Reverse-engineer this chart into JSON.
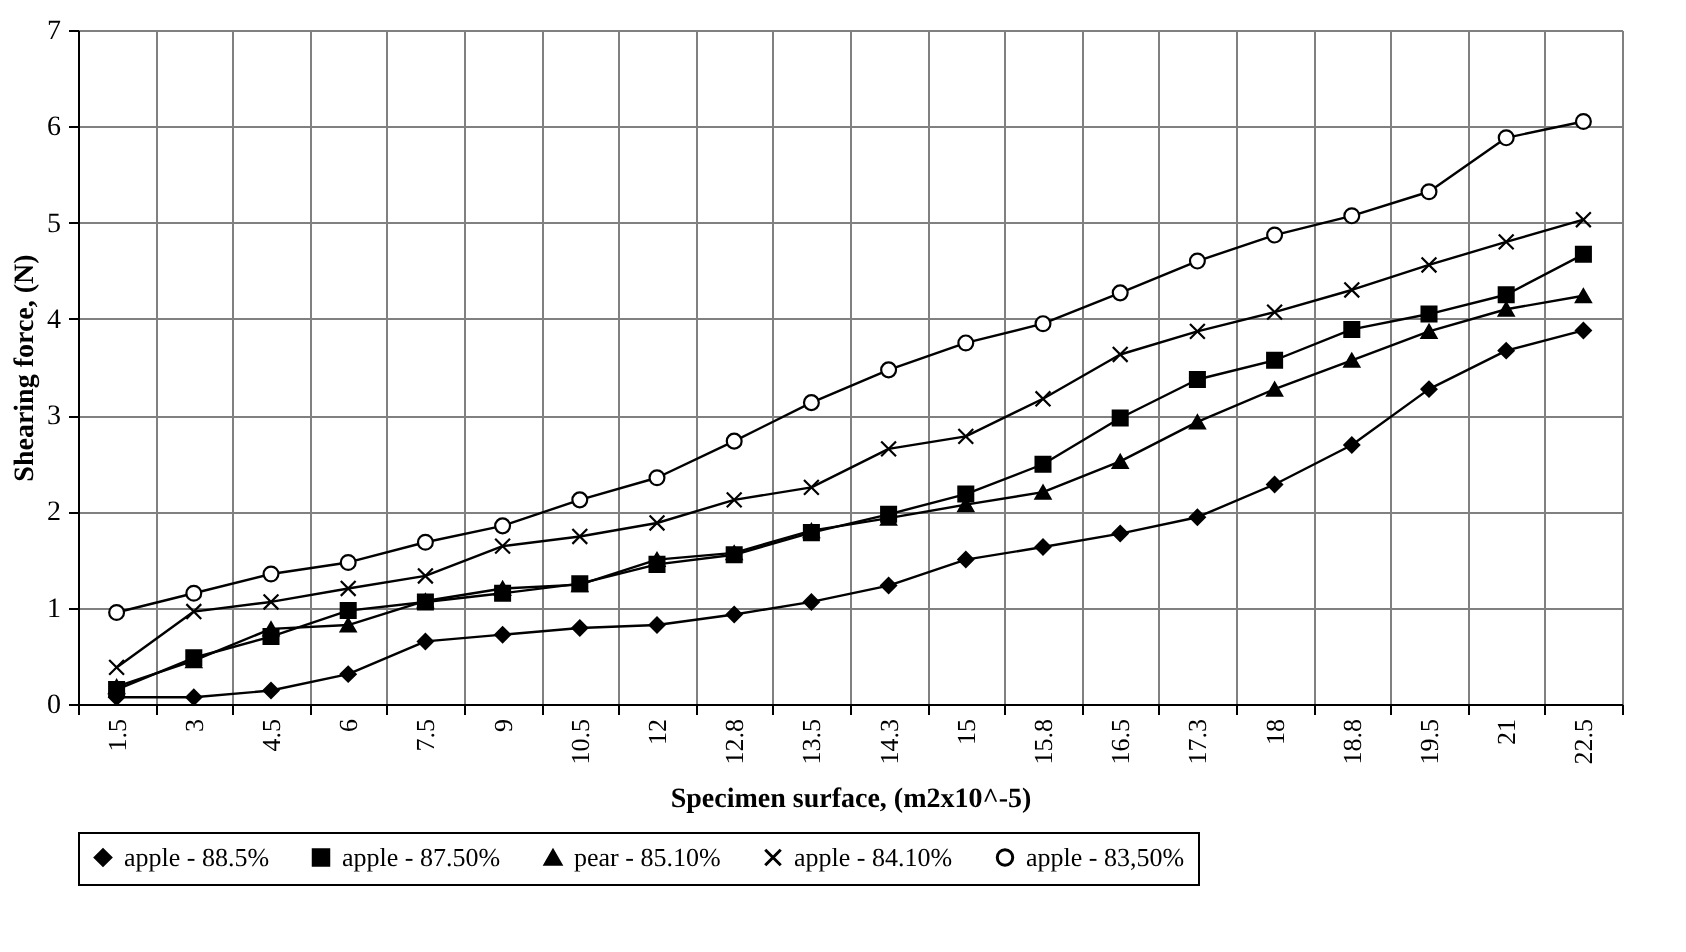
{
  "chart_data": {
    "type": "line",
    "xlabel": "Specimen surface, (m2x10^-5)",
    "ylabel": "Shearing force, (N)",
    "categories": [
      "1.5",
      "3",
      "4.5",
      "6",
      "7.5",
      "9",
      "10.5",
      "12",
      "12.8",
      "13.5",
      "14.3",
      "15",
      "15.8",
      "16.5",
      "17.3",
      "18",
      "18.8",
      "19.5",
      "21",
      "22.5"
    ],
    "ylim": [
      0,
      7
    ],
    "yticks": [
      0,
      1,
      2,
      3,
      4,
      5,
      6,
      7
    ],
    "grid": true,
    "legend": "bottom",
    "line_style": "solid",
    "series": [
      {
        "name": "apple - 88.5%",
        "color": "#000000",
        "marker": "diamond",
        "values": [
          0.07,
          0.07,
          0.14,
          0.31,
          0.65,
          0.72,
          0.79,
          0.82,
          0.93,
          1.06,
          1.23,
          1.5,
          1.63,
          1.77,
          1.94,
          2.28,
          2.69,
          3.27,
          3.67,
          3.88
        ]
      },
      {
        "name": "apple - 87.50%",
        "color": "#000000",
        "marker": "square",
        "values": [
          0.15,
          0.48,
          0.7,
          0.97,
          1.06,
          1.15,
          1.25,
          1.45,
          1.55,
          1.78,
          1.97,
          2.18,
          2.49,
          2.97,
          3.37,
          3.57,
          3.89,
          4.05,
          4.25,
          4.67
        ]
      },
      {
        "name": "pear - 85.10%",
        "color": "#000000",
        "marker": "triangle",
        "values": [
          0.18,
          0.45,
          0.78,
          0.82,
          1.07,
          1.2,
          1.24,
          1.5,
          1.57,
          1.8,
          1.93,
          2.07,
          2.2,
          2.52,
          2.93,
          3.27,
          3.57,
          3.87,
          4.1,
          4.24
        ]
      },
      {
        "name": "apple - 84.10%",
        "color": "#000000",
        "marker": "cross",
        "values": [
          0.38,
          0.96,
          1.06,
          1.2,
          1.33,
          1.64,
          1.74,
          1.88,
          2.12,
          2.25,
          2.65,
          2.78,
          3.17,
          3.63,
          3.87,
          4.07,
          4.3,
          4.56,
          4.8,
          5.03
        ]
      },
      {
        "name": "apple - 83,50%",
        "color": "#000000",
        "marker": "circle",
        "values": [
          0.95,
          1.15,
          1.35,
          1.47,
          1.68,
          1.85,
          2.12,
          2.35,
          2.73,
          3.13,
          3.47,
          3.75,
          3.95,
          4.27,
          4.6,
          4.87,
          5.07,
          5.32,
          5.88,
          6.05
        ]
      }
    ]
  }
}
